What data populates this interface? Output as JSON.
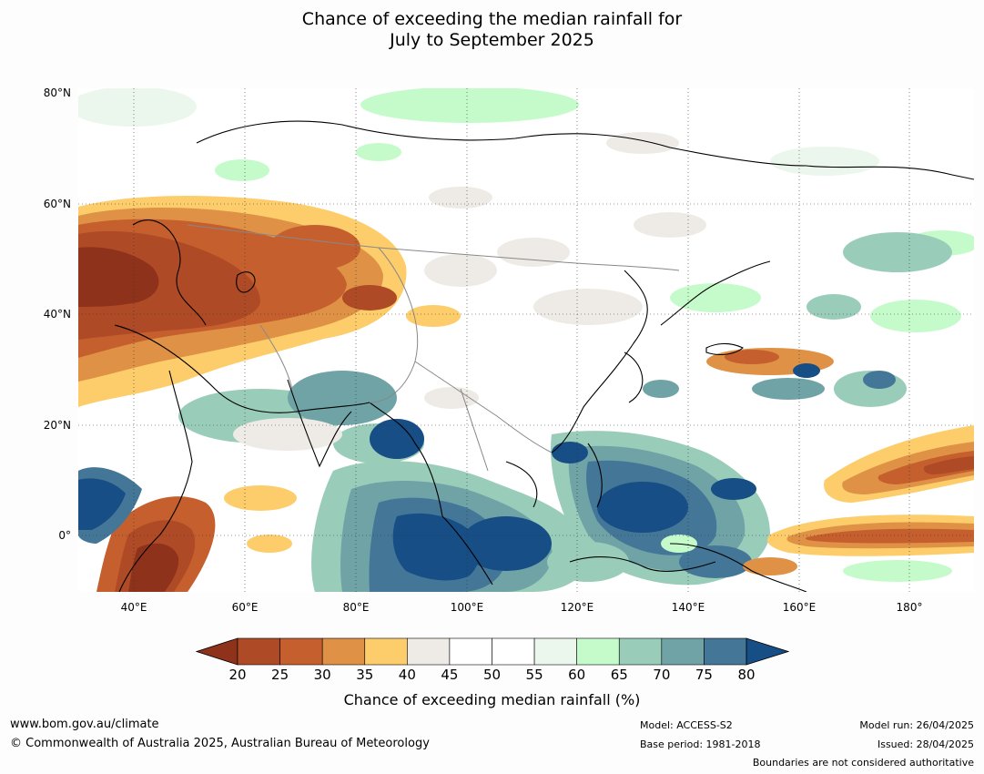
{
  "title_line1": "Chance of exceeding the median rainfall for",
  "title_line2": "July to September 2025",
  "lat_labels": [
    "80°N",
    "60°N",
    "40°N",
    "20°N",
    "0°"
  ],
  "lon_labels": [
    "40°E",
    "60°E",
    "80°E",
    "100°E",
    "120°E",
    "140°E",
    "160°E",
    "180°"
  ],
  "colorbar": {
    "title": "Chance of exceeding median rainfall (%)",
    "ticks": [
      "20",
      "25",
      "30",
      "35",
      "40",
      "45",
      "50",
      "55",
      "60",
      "65",
      "70",
      "75",
      "80"
    ],
    "colors": [
      "#8f321b",
      "#ae4a25",
      "#c65f2e",
      "#df9245",
      "#fdcd6b",
      "#eeebe7",
      "#ffffff",
      "#ffffff",
      "#ebf7ec",
      "#c5fbcb",
      "#9acdb9",
      "#6fa3a6",
      "#447797",
      "#164e85"
    ]
  },
  "map_extent": {
    "lon_min": 30,
    "lon_max": 191.5,
    "lat_min": -10,
    "lat_max": 80
  },
  "footer": {
    "website": "www.bom.gov.au/climate",
    "copyright": "© Commonwealth of Australia 2025, Australian Bureau of Meteorology",
    "model": "Model: ACCESS-S2",
    "base_period": "Base period: 1981-2018",
    "model_run": "Model run: 26/04/2025",
    "issued": "Issued: 28/04/2025",
    "disclaimer": "Boundaries are not considered authoritative"
  }
}
